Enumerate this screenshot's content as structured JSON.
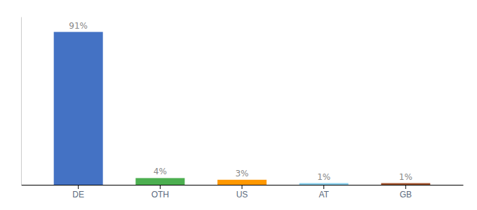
{
  "chart_data": {
    "type": "bar",
    "categories": [
      "DE",
      "OTH",
      "US",
      "AT",
      "GB"
    ],
    "values": [
      91,
      4,
      3,
      1,
      1
    ],
    "value_labels": [
      "91%",
      "4%",
      "3%",
      "1%",
      "1%"
    ],
    "colors": [
      "#4472c4",
      "#4caf50",
      "#ff9800",
      "#87ceeb",
      "#a0522d"
    ],
    "ylim": [
      0,
      100
    ],
    "data_labels": true,
    "tick_labels": "x",
    "grid": false
  }
}
